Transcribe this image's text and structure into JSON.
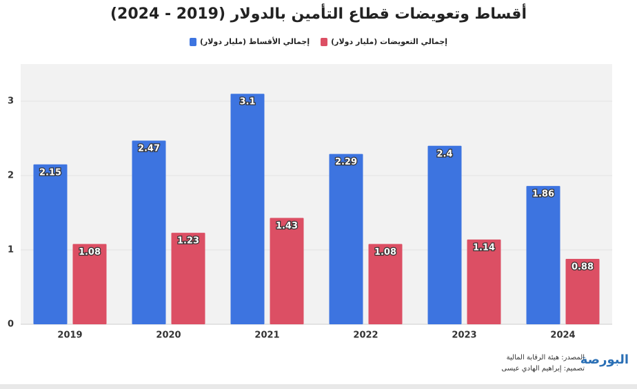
{
  "chart_data": {
    "type": "bar",
    "title": "أقساط وتعويضات قطاع التأمين بالدولار (2019 - 2024)",
    "categories": [
      "2019",
      "2020",
      "2021",
      "2022",
      "2023",
      "2024"
    ],
    "series": [
      {
        "name": "إجمالي الأقساط (مليار دولار)",
        "color": "#3d74e0",
        "values": [
          2.15,
          2.47,
          3.1,
          2.29,
          2.4,
          1.86
        ]
      },
      {
        "name": "إجمالي التعويضات (مليار دولار)",
        "color": "#dc4f64",
        "values": [
          1.08,
          1.23,
          1.43,
          1.08,
          1.14,
          0.88
        ]
      }
    ],
    "ylim": [
      0,
      3.5
    ],
    "yticks": [
      0,
      1,
      2,
      3
    ],
    "grid": true,
    "source": "المصدر: هيئة الرقابة المالية",
    "design": "تصميم: إبراهيم الهادي عيسى",
    "logo": "البورصة"
  }
}
